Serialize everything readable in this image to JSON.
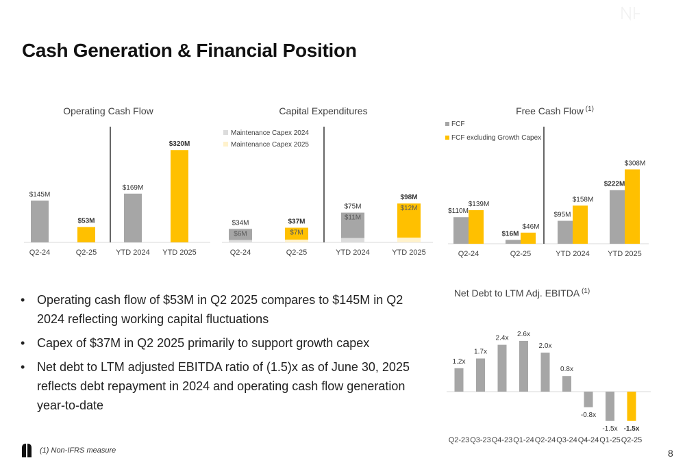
{
  "page": {
    "title": "Cash Generation & Financial Position",
    "page_number": "8",
    "footnote": "(1) Non-IFRS measure"
  },
  "bullets": [
    "Operating cash flow of $53M in Q2 2025 compares to $145M in Q2 2024 reflecting working capital fluctuations",
    "Capex of $37M in Q2 2025 primarily to support growth capex",
    "Net debt to LTM adjusted EBITDA ratio of (1.5)x as of June 30, 2025 reflects debt repayment in 2024 and operating cash flow generation year-to-date"
  ],
  "colors": {
    "gray": "#a6a6a6",
    "gold": "#ffc000",
    "light_gray": "#dcdcdc",
    "light_gold": "#fff2cc",
    "divider": "#000000"
  },
  "chart_data": [
    {
      "id": "ocf",
      "type": "bar",
      "title": "Operating Cash Flow",
      "title_sup": "",
      "categories": [
        "Q2-24",
        "Q2-25",
        "YTD 2024",
        "YTD 2025"
      ],
      "values": [
        145,
        53,
        169,
        320
      ],
      "labels": [
        "$145M",
        "$53M",
        "$169M",
        "$320M"
      ],
      "colors": [
        "gray",
        "gold",
        "gray",
        "gold"
      ],
      "bold_labels": [
        false,
        true,
        false,
        true
      ],
      "ylim": [
        0,
        330
      ]
    },
    {
      "id": "capex",
      "type": "bar",
      "title": "Capital Expenditures",
      "title_sup": "",
      "categories": [
        "Q2-24",
        "Q2-25",
        "YTD 2024",
        "YTD 2025"
      ],
      "values": [
        34,
        37,
        75,
        98
      ],
      "labels": [
        "$34M",
        "$37M",
        "$75M",
        "$98M"
      ],
      "colors": [
        "gray",
        "gold",
        "gray",
        "gold"
      ],
      "bold_labels": [
        false,
        true,
        false,
        true
      ],
      "maintenance": [
        6,
        7,
        11,
        12
      ],
      "maintenance_labels": [
        "$6M",
        "$7M",
        "$11M",
        "$12M"
      ],
      "maintenance_colors": [
        "light_gray",
        "light_gold",
        "light_gray",
        "light_gold"
      ],
      "legend": [
        "Maintenance Capex 2024",
        "Maintenance Capex 2025"
      ],
      "ylim": [
        0,
        240
      ]
    },
    {
      "id": "fcf",
      "type": "bar",
      "title": "Free Cash Flow",
      "title_sup": "(1)",
      "categories": [
        "Q2-24",
        "Q2-25",
        "YTD 2024",
        "YTD 2025"
      ],
      "series": [
        {
          "name": "FCF",
          "values": [
            110,
            16,
            95,
            222
          ],
          "labels": [
            "$110M",
            "$16M",
            "$95M",
            "$222M"
          ],
          "bold_labels": [
            false,
            true,
            false,
            true
          ],
          "color": "gray"
        },
        {
          "name": "FCF excluding Growth Capex",
          "values": [
            139,
            46,
            158,
            308
          ],
          "labels": [
            "$139M",
            "$46M",
            "$158M",
            "$308M"
          ],
          "bold_labels": [
            false,
            false,
            false,
            false
          ],
          "color": "gold"
        }
      ],
      "ylim": [
        0,
        400
      ]
    },
    {
      "id": "leverage",
      "type": "bar",
      "title": "Net Debt to LTM Adj. EBITDA",
      "title_sup": "(1)",
      "categories": [
        "Q2-23",
        "Q3-23",
        "Q4-23",
        "Q1-24",
        "Q2-24",
        "Q3-24",
        "Q4-24",
        "Q1-25",
        "Q2-25"
      ],
      "values": [
        1.2,
        1.7,
        2.4,
        2.6,
        2.0,
        0.8,
        -0.8,
        -1.5,
        -1.5
      ],
      "labels": [
        "1.2x",
        "1.7x",
        "2.4x",
        "2.6x",
        "2.0x",
        "0.8x",
        "-0.8x",
        "-1.5x",
        "-1.5x"
      ],
      "colors": [
        "gray",
        "gray",
        "gray",
        "gray",
        "gray",
        "gray",
        "gray",
        "gray",
        "gold"
      ],
      "bold_labels": [
        false,
        false,
        false,
        false,
        false,
        false,
        false,
        false,
        true
      ],
      "ylim": [
        -1.5,
        2.6
      ]
    }
  ]
}
